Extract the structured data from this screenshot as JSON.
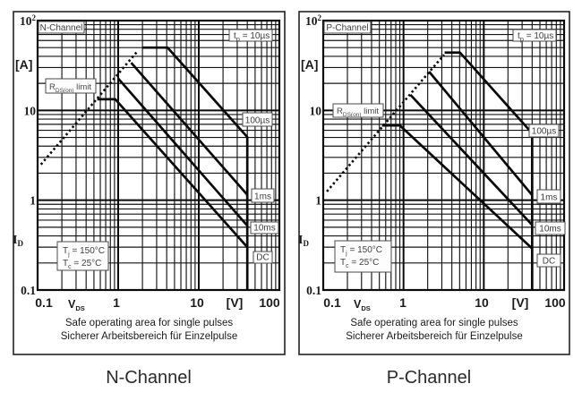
{
  "figure": {
    "kind": "safe-operating-area",
    "background": "#ffffff",
    "ink_color": "#0a0a0a",
    "grid_minor_color": "#141414",
    "box_border_color": "#4a4a4a",
    "caption_color": "#2a2a2a"
  },
  "chart_data": [
    {
      "type": "line",
      "title": "N-Channel",
      "channel_caption": "N-Channel",
      "caption_lines": [
        "Safe operating area for single pulses",
        "Sicherer Arbeitsbereich für Einzelpulse"
      ],
      "x_axis": {
        "symbol": {
          "base": "V",
          "sub": "DS"
        },
        "unit": "[V]",
        "scale": "log",
        "range": [
          0.1,
          100
        ],
        "ticks": [
          {
            "label": "0.1",
            "value": 0.1
          },
          {
            "label": "1",
            "value": 1
          },
          {
            "label": "10",
            "value": 10
          },
          {
            "label": "100",
            "value": 100
          }
        ]
      },
      "y_axis": {
        "symbol": {
          "base": "I",
          "sub": "D"
        },
        "unit": "[A]",
        "scale": "log",
        "range": [
          0.1,
          100
        ],
        "ticks": [
          {
            "label": "10",
            "sup": "2",
            "value": 100
          },
          {
            "label": "10",
            "value": 10
          },
          {
            "label": "1",
            "value": 1
          },
          {
            "label": "0.1",
            "value": 0.1
          }
        ]
      },
      "grid": "log-log, major and minor lines on",
      "rds_limit_label": {
        "base": "R",
        "sub": "DS(on)",
        "rest": " limit"
      },
      "rds_limit_line": {
        "style": "dotted",
        "points": [
          [
            0.11,
            2.5
          ],
          [
            1.75,
            46
          ]
        ]
      },
      "pulse_label_top": {
        "base": "t",
        "sub": "p",
        "rest": " = 10µs"
      },
      "pulse_labels": [
        "100µs",
        "1ms",
        "10ms",
        "DC"
      ],
      "vds_max": 40,
      "curves": [
        {
          "name": "tp = 10µs",
          "points": [
            [
              2.0,
              50
            ],
            [
              4.1,
              50
            ],
            [
              40,
              5.05
            ],
            [
              40,
              0.1
            ]
          ]
        },
        {
          "name": "100µs",
          "points": [
            [
              1.45,
              33.9
            ],
            [
              40,
              1.15
            ]
          ]
        },
        {
          "name": "1ms",
          "points": [
            [
              0.99,
              22.9
            ],
            [
              40,
              0.52
            ]
          ]
        },
        {
          "name": "10ms",
          "points": [
            [
              0.55,
              13.3
            ],
            [
              0.92,
              13.3
            ],
            [
              40,
              0.3
            ]
          ]
        }
      ],
      "conditions": [
        {
          "base": "T",
          "sub": "j",
          "rest": " = 150°C"
        },
        {
          "base": "T",
          "sub": "c",
          "rest": " = 25°C"
        }
      ]
    },
    {
      "type": "line",
      "title": "P-Channel",
      "channel_caption": "P-Channel",
      "caption_lines": [
        "Safe operating area for single pulses",
        "Sicherer Arbeitsbereich für Einzelpulse"
      ],
      "x_axis": {
        "symbol": {
          "base": "V",
          "sub": "DS"
        },
        "unit": "[V]",
        "scale": "log",
        "range": [
          0.1,
          100
        ],
        "ticks": [
          {
            "label": "0.1",
            "value": 0.1
          },
          {
            "label": "1",
            "value": 1
          },
          {
            "label": "10",
            "value": 10
          },
          {
            "label": "100",
            "value": 100
          }
        ]
      },
      "y_axis": {
        "symbol": {
          "base": "I",
          "sub": "D"
        },
        "unit": "[A]",
        "scale": "log",
        "range": [
          0.1,
          100
        ],
        "ticks": [
          {
            "label": "10",
            "sup": "2",
            "value": 100
          },
          {
            "label": "10",
            "value": 10
          },
          {
            "label": "1",
            "value": 1
          },
          {
            "label": "0.1",
            "value": 0.1
          }
        ]
      },
      "grid": "log-log, major and minor lines on",
      "rds_limit_label": {
        "base": "R",
        "sub": "DS(on)",
        "rest": " limit"
      },
      "rds_limit_line": {
        "style": "dotted",
        "points": [
          [
            0.111,
            1.25
          ],
          [
            3.2,
            41.7
          ]
        ]
      },
      "pulse_label_top": {
        "base": "t",
        "sub": "p",
        "rest": " = 10µs"
      },
      "pulse_labels": [
        "100µs",
        "1ms",
        "10ms",
        "DC"
      ],
      "vds_max": 40,
      "curves": [
        {
          "name": "tp = 10µs",
          "points": [
            [
              3.25,
              44
            ],
            [
              5.05,
              44
            ],
            [
              40,
              5.56
            ],
            [
              40,
              0.1
            ]
          ]
        },
        {
          "name": "100µs",
          "points": [
            [
              2.08,
              27
            ],
            [
              40,
              1.14
            ]
          ]
        },
        {
          "name": "1ms",
          "points": [
            [
              1.22,
              14.9
            ],
            [
              40,
              0.53
            ]
          ]
        },
        {
          "name": "10ms",
          "points": [
            [
              0.54,
              6.8
            ],
            [
              0.9,
              6.8
            ],
            [
              40,
              0.29
            ]
          ]
        }
      ],
      "conditions": [
        {
          "base": "T",
          "sub": "j",
          "rest": " = 150°C"
        },
        {
          "base": "T",
          "sub": "c",
          "rest": " = 25°C"
        }
      ]
    }
  ]
}
